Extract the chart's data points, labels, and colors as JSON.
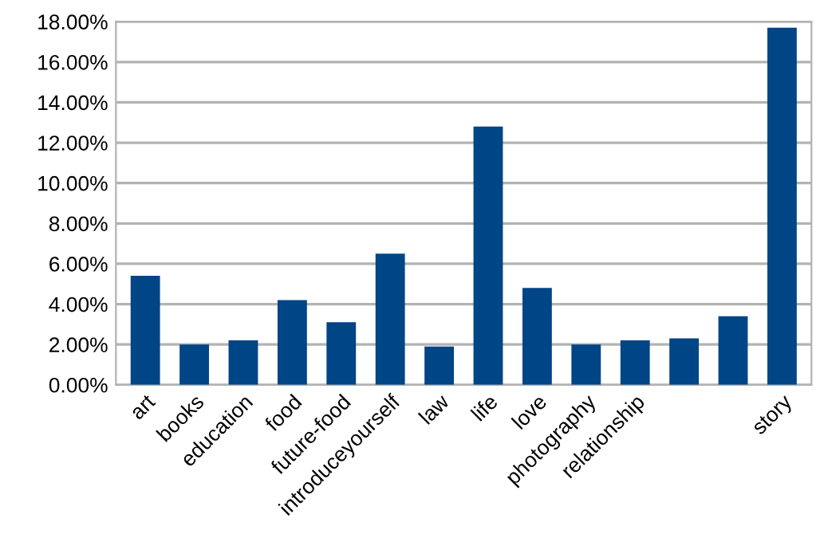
{
  "chart_data": {
    "type": "bar",
    "categories": [
      "art",
      "books",
      "education",
      "food",
      "future-food",
      "introduceyourself",
      "law",
      "life",
      "love",
      "photography",
      "relationship",
      null,
      null,
      "story"
    ],
    "values": [
      5.4,
      2.0,
      2.2,
      4.2,
      3.1,
      6.5,
      1.9,
      12.8,
      4.8,
      2.0,
      2.2,
      2.3,
      3.4,
      17.7
    ],
    "color": "#004586",
    "ylim": [
      0,
      18
    ],
    "yticks": [
      {
        "value": 0,
        "label": "0.00%"
      },
      {
        "value": 2,
        "label": "2.00%"
      },
      {
        "value": 4,
        "label": "4.00%"
      },
      {
        "value": 6,
        "label": "6.00%"
      },
      {
        "value": 8,
        "label": "8.00%"
      },
      {
        "value": 10,
        "label": "10.00%"
      },
      {
        "value": 12,
        "label": "12.00%"
      },
      {
        "value": 14,
        "label": "14.00%"
      },
      {
        "value": 16,
        "label": "16.00%"
      },
      {
        "value": 18,
        "label": "18.00%"
      }
    ],
    "grid": "y",
    "legend": false
  }
}
